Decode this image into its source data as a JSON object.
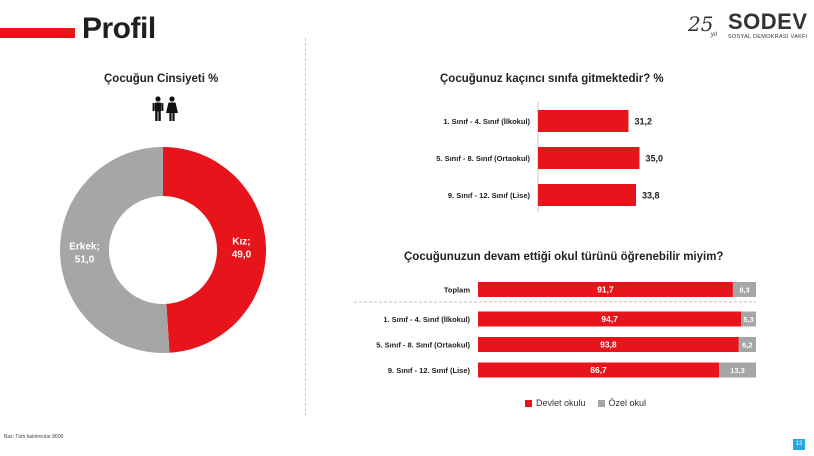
{
  "page": {
    "title": "Profil",
    "footnote": "Baz: Tüm katılımcılar 8600",
    "page_number": "13"
  },
  "logo": {
    "number": "25",
    "sub": "yıl",
    "name": "SODEV",
    "tagline": "SOSYAL DEMOKRASİ VAKFI"
  },
  "colors": {
    "accent": "#e8141b",
    "secondary": "#a6a6a6",
    "page_badge": "#29a8e0"
  },
  "chart_data": [
    {
      "type": "pie",
      "style": "donut",
      "title": "Çocuğun Cinsiyeti %",
      "icon": "male-female-icon",
      "slices": [
        {
          "label": "Kız;",
          "value": 49.0,
          "display": "49,0",
          "color": "#e8141b"
        },
        {
          "label": "Erkek;",
          "value": 51.0,
          "display": "51,0",
          "color": "#a6a6a6"
        }
      ]
    },
    {
      "type": "bar",
      "orientation": "horizontal",
      "title": "Çocuğunuz kaçıncı sınıfa gitmektedir? %",
      "categories": [
        "1. Sınıf - 4. Sınıf (İlkokul)",
        "5. Sınıf - 8. Sınıf (Ortaokul)",
        "9. Sınıf - 12. Sınıf (Lise)"
      ],
      "values": [
        31.2,
        35.0,
        33.8
      ],
      "labels": [
        "31,2",
        "35,0",
        "33,8"
      ],
      "xlim": [
        0,
        100
      ]
    },
    {
      "type": "bar",
      "orientation": "horizontal",
      "stacked": true,
      "title": "Çocuğunuzun devam ettiği okul türünü öğrenebilir miyim?",
      "categories": [
        "Toplam",
        "1. Sınıf - 4. Sınıf (İlkokul)",
        "5. Sınıf - 8. Sınıf (Ortaokul)",
        "9. Sınıf - 12. Sınıf (Lise)"
      ],
      "series": [
        {
          "name": "Devlet okulu",
          "color": "#e8141b",
          "values": [
            91.7,
            94.7,
            93.8,
            86.7
          ],
          "labels": [
            "91,7",
            "94,7",
            "93,8",
            "86,7"
          ]
        },
        {
          "name": "Özel okul",
          "color": "#a6a6a6",
          "values": [
            8.3,
            5.3,
            6.2,
            13.3
          ],
          "labels": [
            "8,3",
            "5,3",
            "6,2",
            "13,3"
          ]
        }
      ],
      "xlim": [
        0,
        100
      ]
    }
  ]
}
